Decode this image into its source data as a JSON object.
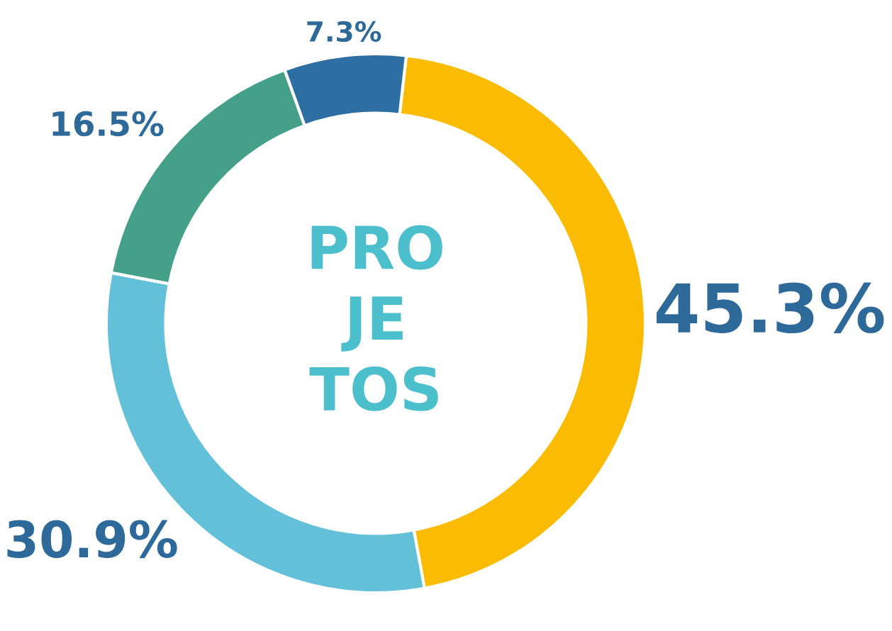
{
  "chart_data": {
    "type": "donut",
    "title": "PRO\nJE\nTOS",
    "categories": [
      null,
      null,
      null,
      null
    ],
    "values": [
      45.3,
      30.9,
      16.5,
      7.3
    ],
    "colors": [
      "#fbbb00",
      "#62c1d9",
      "#45a08a",
      "#2e6fa3"
    ],
    "value_labels": [
      "45.3%",
      "30.9%",
      "16.5%",
      "7.3%"
    ],
    "legend": false
  }
}
